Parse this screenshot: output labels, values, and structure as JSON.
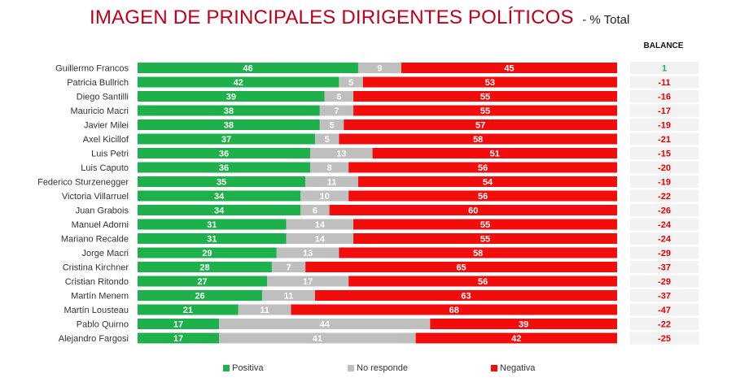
{
  "header": {
    "title": "IMAGEN DE PRINCIPALES DIRIGENTES POLÍTICOS",
    "subtitle": "- % Total",
    "balance_label": "BALANCE"
  },
  "colors": {
    "positive": "#1db04b",
    "no_response": "#bfbfbf",
    "negative": "#f20d0d",
    "balance_positive": "#1db04b",
    "balance_negative": "#e60000",
    "balance_bg": "#f2f2f2"
  },
  "chart_data": {
    "type": "bar",
    "orientation": "horizontal",
    "stacked": true,
    "title": "IMAGEN DE PRINCIPALES DIRIGENTES POLÍTICOS - % Total",
    "categories": [
      "Guillermo Francos",
      "Patricia Bullrich",
      "Diego Santilli",
      "Mauricio Macri",
      "Javier Milei",
      "Axel Kicillof",
      "Luis Petri",
      "Luis Caputo",
      "Federico Sturzenegger",
      "Victoria Villarruel",
      "Juan Grabois",
      "Manuel Adorni",
      "Mariano Recalde",
      "Jorge Macri",
      "Cristina Kirchner",
      "Cristian Ritondo",
      "Martín Menem",
      "Martín Lousteau",
      "Pablo Quirno",
      "Alejandro Fargosi"
    ],
    "series": [
      {
        "name": "Positiva",
        "values": [
          46,
          42,
          39,
          38,
          38,
          37,
          36,
          36,
          35,
          34,
          34,
          31,
          31,
          29,
          28,
          27,
          26,
          21,
          17,
          17
        ]
      },
      {
        "name": "No responde",
        "values": [
          9,
          5,
          6,
          7,
          5,
          5,
          13,
          8,
          11,
          10,
          6,
          14,
          14,
          13,
          7,
          17,
          11,
          11,
          44,
          41
        ]
      },
      {
        "name": "Negativa",
        "values": [
          45,
          53,
          55,
          55,
          57,
          58,
          51,
          56,
          54,
          56,
          60,
          55,
          55,
          58,
          65,
          56,
          63,
          68,
          39,
          42
        ]
      }
    ],
    "balance": [
      "1",
      "-11",
      "-16",
      "-17",
      "-19",
      "-21",
      "-15",
      "-20",
      "-19",
      "-22",
      "-26",
      "-24",
      "-24",
      "-29",
      "-37",
      "-29",
      "-37",
      "-47",
      "-22",
      "-25"
    ],
    "xlim": [
      0,
      100
    ],
    "legend_position": "bottom"
  }
}
